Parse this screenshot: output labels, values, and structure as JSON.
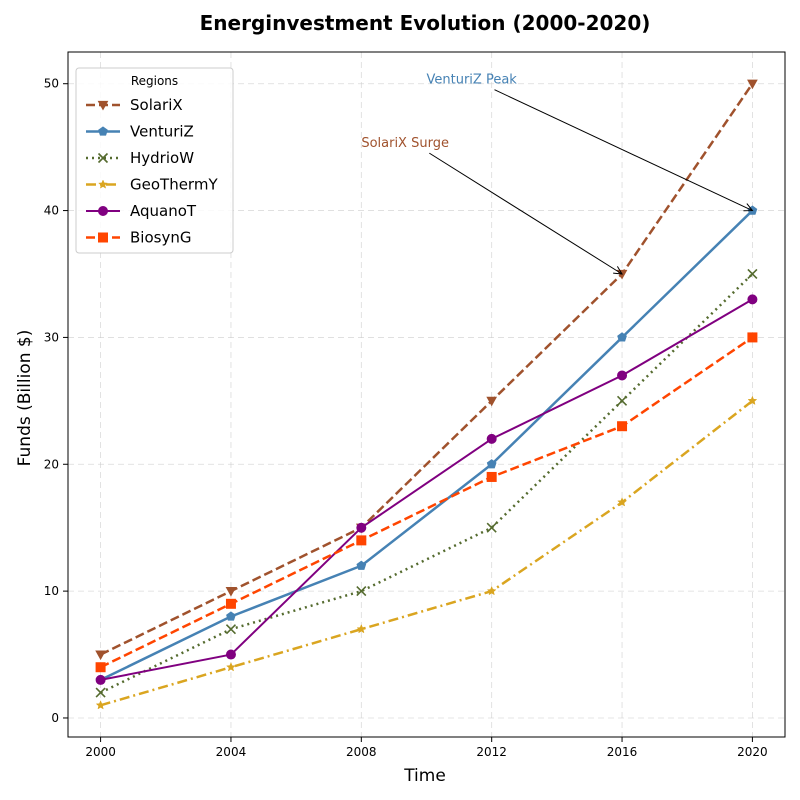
{
  "chart_data": {
    "type": "line",
    "title": "Energinvestment Evolution (2000-2020)",
    "xlabel": "Time",
    "ylabel": "Funds (Billion $)",
    "x": [
      2000,
      2004,
      2008,
      2012,
      2016,
      2020
    ],
    "xlim": [
      1999.0,
      2021.0
    ],
    "ylim": [
      -1.5,
      52.5
    ],
    "xticks": [
      2000,
      2004,
      2008,
      2012,
      2016,
      2020
    ],
    "yticks": [
      0,
      10,
      20,
      30,
      40,
      50
    ],
    "grid": true,
    "legend": {
      "title": "Regions",
      "placement": "top-left"
    },
    "series": [
      {
        "name": "SolariX",
        "values": [
          5,
          10,
          15,
          25,
          35,
          50
        ],
        "color": "#a0522d",
        "dash": "dashed",
        "marker": "triangle-down"
      },
      {
        "name": "VenturiZ",
        "values": [
          3,
          8,
          12,
          20,
          30,
          40
        ],
        "color": "#4682b4",
        "dash": "solid",
        "marker": "pentagon"
      },
      {
        "name": "HydrioW",
        "values": [
          2,
          7,
          10,
          15,
          25,
          35
        ],
        "color": "#556b2f",
        "dash": "dotted",
        "marker": "x"
      },
      {
        "name": "GeoThermY",
        "values": [
          1,
          4,
          7,
          10,
          17,
          25
        ],
        "color": "#daa520",
        "dash": "dashdot",
        "marker": "star"
      },
      {
        "name": "AquanoT",
        "values": [
          3,
          5,
          15,
          22,
          27,
          33
        ],
        "color": "#800080",
        "dash": "solid",
        "marker": "circle"
      },
      {
        "name": "BiosynG",
        "values": [
          4,
          9,
          14,
          19,
          23,
          30
        ],
        "color": "#ff4500",
        "dash": "dashed",
        "marker": "square"
      }
    ],
    "annotations": [
      {
        "text": "VenturiZ Peak",
        "color": "#4682b4",
        "text_at": [
          2010,
          50
        ],
        "point_at": [
          2020,
          40
        ]
      },
      {
        "text": "SolariX Surge",
        "color": "#a0522d",
        "text_at": [
          2008,
          45
        ],
        "point_at": [
          2016,
          35
        ]
      }
    ]
  }
}
